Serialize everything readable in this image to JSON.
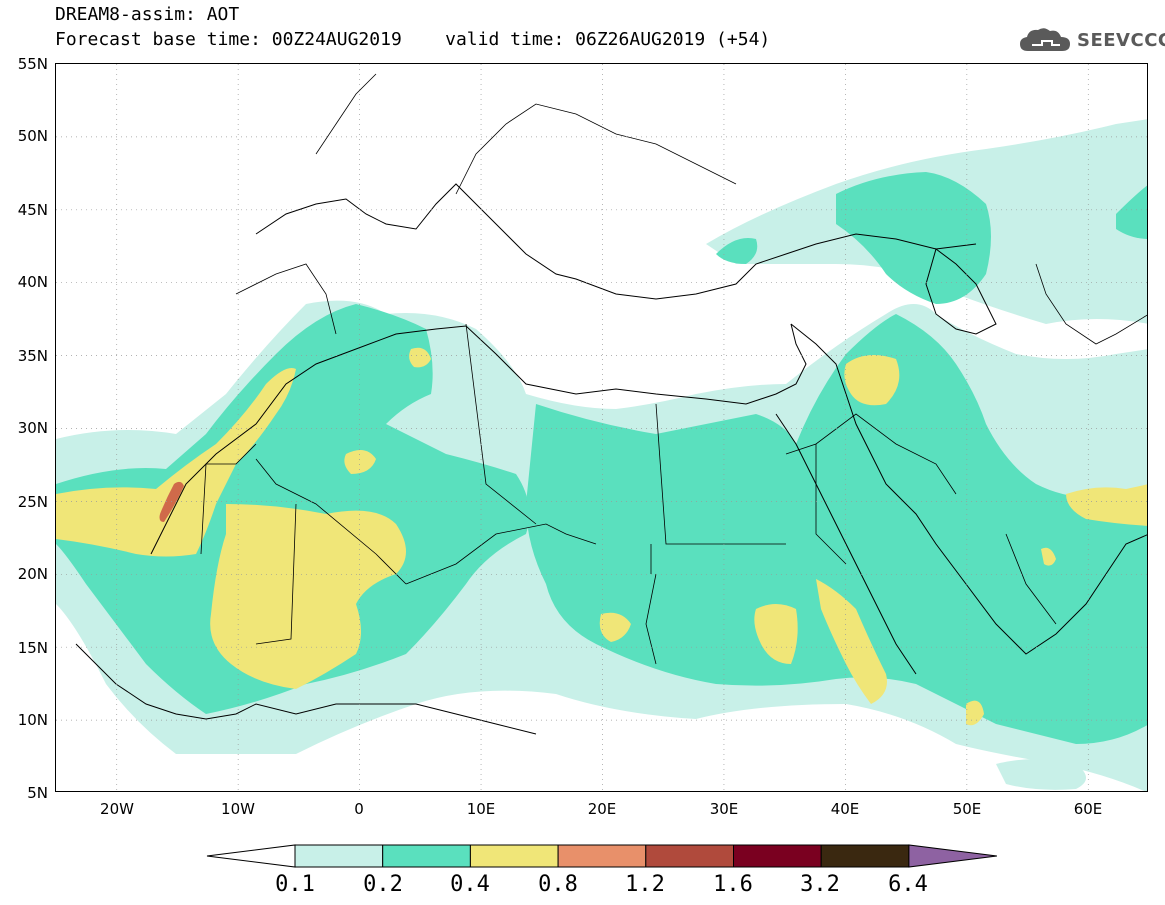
{
  "header": {
    "title_line_1": "DREAM8-assim: AOT",
    "title_line_2": "Forecast base time: 00Z24AUG2019    valid time: 06Z26AUG2019 (+54)",
    "logo_text": "SEEVCCC"
  },
  "map": {
    "region": "North Africa, Middle East and Europe",
    "projection": "lat-lon",
    "lon_range": [
      -25,
      65
    ],
    "lat_range": [
      5,
      55
    ],
    "lat_labels": [
      "55N",
      "50N",
      "45N",
      "40N",
      "35N",
      "30N",
      "25N",
      "20N",
      "15N",
      "10N",
      "5N"
    ],
    "lon_labels": [
      "20W",
      "10W",
      "0",
      "10E",
      "20E",
      "30E",
      "40E",
      "50E",
      "60E"
    ],
    "grid": "dotted",
    "border_color": "#000000"
  },
  "colorbar": {
    "labels": [
      "0.1",
      "0.2",
      "0.4",
      "0.8",
      "1.2",
      "1.6",
      "3.2",
      "6.4"
    ],
    "colors": [
      "#ffffff",
      "#c8f0e8",
      "#5ae0be",
      "#f0e678",
      "#e8906a",
      "#b04a3c",
      "#7a0020",
      "#3a2810",
      "#8e62a2"
    ],
    "extend": "both"
  }
}
